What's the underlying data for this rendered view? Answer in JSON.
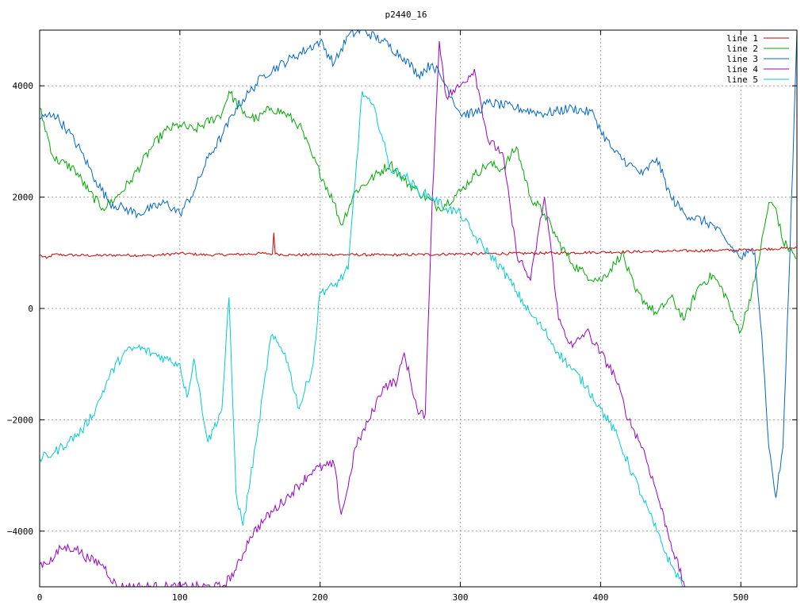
{
  "chart_data": {
    "type": "line",
    "title": "p2440_16",
    "xlabel": "",
    "ylabel": "",
    "xlim": [
      0,
      540
    ],
    "ylim": [
      -5000,
      5000
    ],
    "x_ticks": [
      0,
      100,
      200,
      300,
      400,
      500
    ],
    "y_ticks": [
      -4000,
      -2000,
      0,
      2000,
      4000
    ],
    "x_tick_labels": [
      "0",
      "100",
      "200",
      "300",
      "400",
      "500"
    ],
    "y_tick_labels": [
      "−4000",
      "−2000",
      "0",
      "2000",
      "4000"
    ],
    "grid": true,
    "legend_position": "top-right",
    "series": [
      {
        "name": "line 1",
        "color": "#cc0000",
        "points": [
          [
            0,
            960
          ],
          [
            5,
            900
          ],
          [
            10,
            970
          ],
          [
            20,
            960
          ],
          [
            40,
            950
          ],
          [
            60,
            960
          ],
          [
            80,
            950
          ],
          [
            100,
            990
          ],
          [
            120,
            960
          ],
          [
            140,
            970
          ],
          [
            160,
            990
          ],
          [
            166,
            980
          ],
          [
            167,
            1360
          ],
          [
            168,
            980
          ],
          [
            180,
            960
          ],
          [
            200,
            970
          ],
          [
            250,
            960
          ],
          [
            300,
            980
          ],
          [
            350,
            990
          ],
          [
            400,
            1010
          ],
          [
            450,
            1030
          ],
          [
            500,
            1050
          ],
          [
            540,
            1090
          ]
        ]
      },
      {
        "name": "line 2",
        "color": "#00aa00",
        "points": [
          [
            0,
            3600
          ],
          [
            10,
            2700
          ],
          [
            25,
            2500
          ],
          [
            35,
            2100
          ],
          [
            45,
            1800
          ],
          [
            55,
            2000
          ],
          [
            65,
            2300
          ],
          [
            80,
            2900
          ],
          [
            90,
            3200
          ],
          [
            100,
            3300
          ],
          [
            110,
            3200
          ],
          [
            130,
            3500
          ],
          [
            135,
            3900
          ],
          [
            145,
            3500
          ],
          [
            155,
            3400
          ],
          [
            165,
            3600
          ],
          [
            175,
            3500
          ],
          [
            185,
            3300
          ],
          [
            195,
            2700
          ],
          [
            210,
            1900
          ],
          [
            215,
            1500
          ],
          [
            225,
            2100
          ],
          [
            235,
            2300
          ],
          [
            250,
            2600
          ],
          [
            260,
            2300
          ],
          [
            270,
            2100
          ],
          [
            285,
            1800
          ],
          [
            300,
            2100
          ],
          [
            310,
            2400
          ],
          [
            320,
            2600
          ],
          [
            330,
            2500
          ],
          [
            340,
            2900
          ],
          [
            350,
            2000
          ],
          [
            360,
            1700
          ],
          [
            370,
            1200
          ],
          [
            380,
            800
          ],
          [
            390,
            600
          ],
          [
            400,
            500
          ],
          [
            410,
            800
          ],
          [
            415,
            1000
          ],
          [
            425,
            300
          ],
          [
            440,
            -100
          ],
          [
            450,
            200
          ],
          [
            460,
            -200
          ],
          [
            470,
            400
          ],
          [
            480,
            600
          ],
          [
            490,
            200
          ],
          [
            495,
            -200
          ],
          [
            500,
            -400
          ],
          [
            510,
            500
          ],
          [
            520,
            1900
          ],
          [
            525,
            1800
          ],
          [
            530,
            1200
          ],
          [
            540,
            900
          ]
        ]
      },
      {
        "name": "line 3",
        "color": "#0066cc",
        "points": [
          [
            0,
            3400
          ],
          [
            10,
            3500
          ],
          [
            20,
            3200
          ],
          [
            30,
            2800
          ],
          [
            40,
            2300
          ],
          [
            50,
            1900
          ],
          [
            60,
            1800
          ],
          [
            70,
            1700
          ],
          [
            80,
            1800
          ],
          [
            90,
            1900
          ],
          [
            100,
            1700
          ],
          [
            110,
            2100
          ],
          [
            120,
            2700
          ],
          [
            130,
            3100
          ],
          [
            140,
            3600
          ],
          [
            150,
            3900
          ],
          [
            160,
            4200
          ],
          [
            180,
            4500
          ],
          [
            200,
            4800
          ],
          [
            210,
            4400
          ],
          [
            220,
            4900
          ],
          [
            230,
            5000
          ],
          [
            245,
            4800
          ],
          [
            260,
            4500
          ],
          [
            270,
            4200
          ],
          [
            280,
            4400
          ],
          [
            290,
            4000
          ],
          [
            300,
            3500
          ],
          [
            310,
            3500
          ],
          [
            320,
            3700
          ],
          [
            340,
            3600
          ],
          [
            360,
            3500
          ],
          [
            380,
            3600
          ],
          [
            395,
            3500
          ],
          [
            400,
            3200
          ],
          [
            410,
            2800
          ],
          [
            420,
            2600
          ],
          [
            430,
            2400
          ],
          [
            440,
            2700
          ],
          [
            450,
            2000
          ],
          [
            460,
            1700
          ],
          [
            480,
            1500
          ],
          [
            490,
            1200
          ],
          [
            500,
            900
          ],
          [
            505,
            1000
          ],
          [
            510,
            1000
          ],
          [
            515,
            -500
          ],
          [
            520,
            -2500
          ],
          [
            525,
            -3400
          ],
          [
            530,
            -2500
          ],
          [
            535,
            1000
          ],
          [
            540,
            5000
          ]
        ]
      },
      {
        "name": "line 4",
        "color": "#9900cc",
        "points": [
          [
            0,
            -4600
          ],
          [
            10,
            -4500
          ],
          [
            15,
            -4300
          ],
          [
            25,
            -4300
          ],
          [
            35,
            -4500
          ],
          [
            45,
            -4600
          ],
          [
            55,
            -5000
          ],
          [
            130,
            -5000
          ],
          [
            140,
            -4700
          ],
          [
            150,
            -4100
          ],
          [
            160,
            -3800
          ],
          [
            180,
            -3300
          ],
          [
            195,
            -2900
          ],
          [
            210,
            -2800
          ],
          [
            215,
            -3700
          ],
          [
            220,
            -3200
          ],
          [
            225,
            -2500
          ],
          [
            235,
            -2000
          ],
          [
            245,
            -1400
          ],
          [
            255,
            -1300
          ],
          [
            260,
            -800
          ],
          [
            270,
            -1900
          ],
          [
            275,
            -1900
          ],
          [
            280,
            2000
          ],
          [
            285,
            4800
          ],
          [
            290,
            3800
          ],
          [
            300,
            4000
          ],
          [
            310,
            4300
          ],
          [
            320,
            3000
          ],
          [
            330,
            2800
          ],
          [
            340,
            1000
          ],
          [
            350,
            500
          ],
          [
            360,
            2000
          ],
          [
            365,
            1000
          ],
          [
            370,
            -200
          ],
          [
            380,
            -700
          ],
          [
            390,
            -400
          ],
          [
            400,
            -800
          ],
          [
            410,
            -1200
          ],
          [
            420,
            -2000
          ],
          [
            430,
            -2500
          ],
          [
            440,
            -3300
          ],
          [
            450,
            -4200
          ],
          [
            460,
            -5000
          ]
        ]
      },
      {
        "name": "line 5",
        "color": "#00cccc",
        "points": [
          [
            0,
            -2700
          ],
          [
            10,
            -2600
          ],
          [
            20,
            -2400
          ],
          [
            30,
            -2200
          ],
          [
            40,
            -1800
          ],
          [
            50,
            -1200
          ],
          [
            60,
            -800
          ],
          [
            70,
            -700
          ],
          [
            80,
            -800
          ],
          [
            90,
            -900
          ],
          [
            100,
            -1000
          ],
          [
            105,
            -1600
          ],
          [
            110,
            -900
          ],
          [
            120,
            -2400
          ],
          [
            130,
            -1800
          ],
          [
            135,
            200
          ],
          [
            140,
            -3300
          ],
          [
            145,
            -3900
          ],
          [
            155,
            -2300
          ],
          [
            165,
            -500
          ],
          [
            175,
            -800
          ],
          [
            185,
            -1800
          ],
          [
            195,
            -1000
          ],
          [
            200,
            300
          ],
          [
            210,
            400
          ],
          [
            220,
            700
          ],
          [
            230,
            3900
          ],
          [
            240,
            3500
          ],
          [
            250,
            2500
          ],
          [
            260,
            2400
          ],
          [
            270,
            2100
          ],
          [
            280,
            2000
          ],
          [
            290,
            1800
          ],
          [
            300,
            1700
          ],
          [
            310,
            1300
          ],
          [
            320,
            1000
          ],
          [
            330,
            700
          ],
          [
            340,
            300
          ],
          [
            350,
            -100
          ],
          [
            360,
            -400
          ],
          [
            370,
            -800
          ],
          [
            380,
            -1100
          ],
          [
            390,
            -1400
          ],
          [
            400,
            -1800
          ],
          [
            410,
            -2200
          ],
          [
            420,
            -2800
          ],
          [
            430,
            -3400
          ],
          [
            440,
            -4000
          ],
          [
            450,
            -4600
          ],
          [
            460,
            -5000
          ]
        ]
      }
    ]
  }
}
